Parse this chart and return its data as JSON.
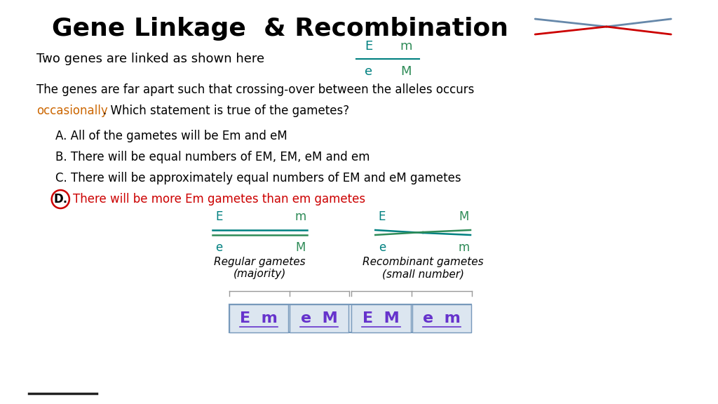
{
  "title": "Gene Linkage  & Recombination",
  "title_fontsize": 26,
  "title_fontweight": "bold",
  "bg_color": "#ffffff",
  "text_color": "#000000",
  "teal_color": "#008080",
  "green_color": "#2e8b57",
  "red_color": "#cc0000",
  "orange_color": "#cc6600",
  "purple_color": "#6633cc",
  "blue_gray": "#6688aa",
  "line1_text": "Two genes are linked as shown here",
  "paragraph": "The genes are far apart such that crossing-over between the alleles occurs",
  "occasionally": "occasionally",
  "paragraph2": ". Which statement is true of the gametes?",
  "optionA": "A. All of the gametes will be Em and eM",
  "optionB": "B. There will be equal numbers of EM, EM, eM and em",
  "optionC": "C. There will be approximately equal numbers of EM and eM gametes",
  "optionD_prefix": "D.",
  "optionD_text": "There will be more Em gametes than em gametes",
  "regular_label": "Regular gametes\n(majority)",
  "recombinant_label": "Recombinant gametes\n(small number)",
  "gamete_labels": [
    "E  m",
    "e  M",
    "E  M",
    "e  m"
  ],
  "bottom_line_color": "#222222",
  "box_fill": "#dce6f0",
  "box_edge": "#7799bb"
}
